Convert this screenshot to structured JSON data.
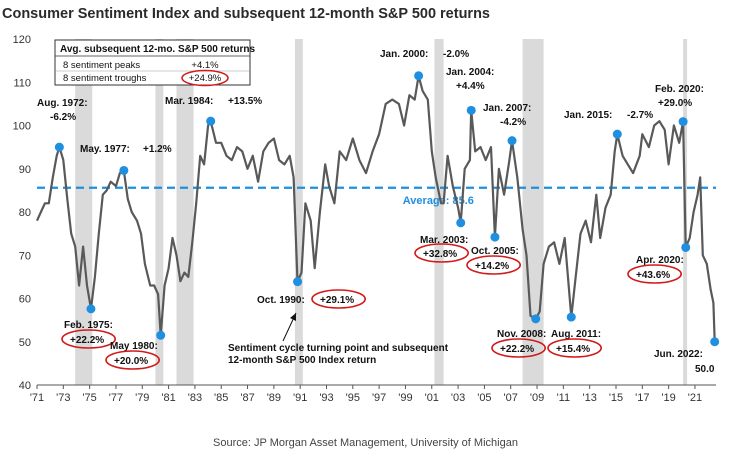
{
  "chart_data": {
    "type": "line",
    "title": "Consumer Sentiment Index and subsequent 12-month S&P 500 returns",
    "source": "Source: JP Morgan Asset Management, University of Michigan",
    "ylim": [
      40,
      120
    ],
    "yticks": [
      40,
      50,
      60,
      70,
      80,
      90,
      100,
      110,
      120
    ],
    "xlim": [
      1971,
      2022.6
    ],
    "xticks": [
      "'71",
      "'73",
      "'75",
      "'77",
      "'79",
      "'81",
      "'83",
      "'85",
      "'87",
      "'89",
      "'91",
      "'93",
      "'95",
      "'97",
      "'99",
      "'01",
      "'03",
      "'05",
      "'07",
      "'09",
      "'11",
      "'13",
      "'15",
      "'17",
      "'19",
      "'21"
    ],
    "average": {
      "label": "Average: 85.6",
      "value": 85.6
    },
    "recessions": [
      [
        1973.9,
        1975.2
      ],
      [
        1980.0,
        1980.6
      ],
      [
        1981.6,
        1982.9
      ],
      [
        1990.6,
        1991.2
      ],
      [
        2001.2,
        2001.9
      ],
      [
        2007.9,
        2009.5
      ],
      [
        2020.1,
        2020.4
      ]
    ],
    "series": [
      {
        "values": [
          [
            1971.0,
            78
          ],
          [
            1971.3,
            80
          ],
          [
            1971.6,
            82
          ],
          [
            1971.9,
            82
          ],
          [
            1972.2,
            88
          ],
          [
            1972.5,
            93
          ],
          [
            1972.7,
            95
          ],
          [
            1973.0,
            92
          ],
          [
            1973.3,
            83
          ],
          [
            1973.6,
            75
          ],
          [
            1973.9,
            72
          ],
          [
            1974.2,
            63
          ],
          [
            1974.5,
            72
          ],
          [
            1974.8,
            63
          ],
          [
            1975.1,
            57.6
          ],
          [
            1975.4,
            65
          ],
          [
            1975.7,
            75
          ],
          [
            1976.0,
            84
          ],
          [
            1976.3,
            85
          ],
          [
            1976.6,
            87
          ],
          [
            1977.0,
            86
          ],
          [
            1977.3,
            89
          ],
          [
            1977.6,
            89.6
          ],
          [
            1977.9,
            83
          ],
          [
            1978.2,
            80
          ],
          [
            1978.6,
            78
          ],
          [
            1978.9,
            75
          ],
          [
            1979.2,
            68
          ],
          [
            1979.6,
            63
          ],
          [
            1979.9,
            63
          ],
          [
            1980.2,
            61
          ],
          [
            1980.4,
            51.5
          ],
          [
            1980.7,
            63
          ],
          [
            1981.0,
            67
          ],
          [
            1981.3,
            74
          ],
          [
            1981.6,
            70
          ],
          [
            1981.9,
            64
          ],
          [
            1982.2,
            66
          ],
          [
            1982.5,
            65
          ],
          [
            1982.8,
            73
          ],
          [
            1983.1,
            82
          ],
          [
            1983.4,
            93
          ],
          [
            1983.7,
            91
          ],
          [
            1984.0,
            100
          ],
          [
            1984.2,
            101
          ],
          [
            1984.6,
            96
          ],
          [
            1985.0,
            96
          ],
          [
            1985.4,
            93
          ],
          [
            1985.8,
            92
          ],
          [
            1986.2,
            95
          ],
          [
            1986.6,
            94
          ],
          [
            1987.0,
            90
          ],
          [
            1987.4,
            93
          ],
          [
            1987.8,
            87
          ],
          [
            1988.2,
            94
          ],
          [
            1988.6,
            96
          ],
          [
            1989.0,
            97
          ],
          [
            1989.4,
            92
          ],
          [
            1989.8,
            91
          ],
          [
            1990.2,
            93
          ],
          [
            1990.5,
            88
          ],
          [
            1990.8,
            63.9
          ],
          [
            1991.1,
            66
          ],
          [
            1991.4,
            82
          ],
          [
            1991.8,
            78
          ],
          [
            1992.1,
            67
          ],
          [
            1992.5,
            80
          ],
          [
            1992.9,
            91
          ],
          [
            1993.2,
            86
          ],
          [
            1993.6,
            82
          ],
          [
            1994.0,
            94
          ],
          [
            1994.5,
            92
          ],
          [
            1995.0,
            97
          ],
          [
            1995.5,
            92
          ],
          [
            1996.0,
            89
          ],
          [
            1996.5,
            94
          ],
          [
            1997.0,
            98
          ],
          [
            1997.5,
            105
          ],
          [
            1998.0,
            106
          ],
          [
            1998.5,
            105
          ],
          [
            1998.9,
            100
          ],
          [
            1999.3,
            107
          ],
          [
            1999.7,
            106
          ],
          [
            2000.0,
            111.5
          ],
          [
            2000.3,
            108
          ],
          [
            2000.7,
            106
          ],
          [
            2001.0,
            94
          ],
          [
            2001.3,
            88
          ],
          [
            2001.7,
            82
          ],
          [
            2001.9,
            82
          ],
          [
            2002.2,
            93
          ],
          [
            2002.6,
            86
          ],
          [
            2003.0,
            81
          ],
          [
            2003.2,
            77.5
          ],
          [
            2003.5,
            90
          ],
          [
            2003.9,
            92
          ],
          [
            2004.0,
            103.5
          ],
          [
            2004.3,
            94
          ],
          [
            2004.7,
            95
          ],
          [
            2005.1,
            92
          ],
          [
            2005.5,
            95
          ],
          [
            2005.8,
            74.2
          ],
          [
            2006.1,
            90
          ],
          [
            2006.5,
            84
          ],
          [
            2006.9,
            92
          ],
          [
            2007.1,
            96.5
          ],
          [
            2007.5,
            88
          ],
          [
            2007.9,
            76
          ],
          [
            2008.2,
            70
          ],
          [
            2008.5,
            56
          ],
          [
            2008.9,
            55.3
          ],
          [
            2009.2,
            57
          ],
          [
            2009.5,
            68
          ],
          [
            2009.9,
            72
          ],
          [
            2010.3,
            73
          ],
          [
            2010.7,
            68
          ],
          [
            2011.1,
            74
          ],
          [
            2011.6,
            55.7
          ],
          [
            2011.9,
            64
          ],
          [
            2012.3,
            75
          ],
          [
            2012.7,
            78
          ],
          [
            2013.1,
            73
          ],
          [
            2013.5,
            84
          ],
          [
            2013.8,
            74
          ],
          [
            2014.2,
            81
          ],
          [
            2014.6,
            84
          ],
          [
            2014.9,
            94
          ],
          [
            2015.1,
            98
          ],
          [
            2015.5,
            93
          ],
          [
            2015.9,
            91
          ],
          [
            2016.3,
            89
          ],
          [
            2016.8,
            93
          ],
          [
            2017.0,
            98
          ],
          [
            2017.5,
            95
          ],
          [
            2017.9,
            100
          ],
          [
            2018.3,
            101
          ],
          [
            2018.7,
            99
          ],
          [
            2019.0,
            91
          ],
          [
            2019.4,
            100
          ],
          [
            2019.8,
            96
          ],
          [
            2020.1,
            100.9
          ],
          [
            2020.3,
            71.8
          ],
          [
            2020.6,
            74
          ],
          [
            2020.9,
            80
          ],
          [
            2021.2,
            84
          ],
          [
            2021.4,
            88
          ],
          [
            2021.6,
            70
          ],
          [
            2021.9,
            68
          ],
          [
            2022.2,
            62
          ],
          [
            2022.4,
            59
          ],
          [
            2022.5,
            50
          ]
        ]
      }
    ],
    "markers": [
      {
        "label": "Aug. 1972:",
        "sub": "-6.2%",
        "x": 1972.7,
        "y": 95
      },
      {
        "label": "Feb. 1975:",
        "sub": "+22.2%",
        "x": 1975.1,
        "y": 57.6
      },
      {
        "label": "May. 1977:",
        "sub": "+1.2%",
        "x": 1977.6,
        "y": 89.6
      },
      {
        "label": "May 1980:",
        "sub": "+20.0%",
        "x": 1980.4,
        "y": 51.5
      },
      {
        "label": "Mar. 1984:",
        "sub": "+13.5%",
        "x": 1984.2,
        "y": 101
      },
      {
        "label": "Oct. 1990:",
        "sub": "+29.1%",
        "x": 1990.8,
        "y": 63.9
      },
      {
        "label": "Jan. 2000:",
        "sub": "-2.0%",
        "x": 2000.0,
        "y": 111.5
      },
      {
        "label": "Mar. 2003:",
        "sub": "+32.8%",
        "x": 2003.2,
        "y": 77.5
      },
      {
        "label": "Jan. 2004:",
        "sub": "+4.4%",
        "x": 2004.0,
        "y": 103.5
      },
      {
        "label": "Oct. 2005:",
        "sub": "+14.2%",
        "x": 2005.8,
        "y": 74.2
      },
      {
        "label": "Jan. 2007:",
        "sub": "-4.2%",
        "x": 2007.1,
        "y": 96.5
      },
      {
        "label": "Nov. 2008:",
        "sub": "+22.2%",
        "x": 2008.9,
        "y": 55.3
      },
      {
        "label": "Aug. 2011:",
        "sub": "+15.4%",
        "x": 2011.6,
        "y": 55.7
      },
      {
        "label": "Jan. 2015:",
        "sub": "-2.7%",
        "x": 2015.1,
        "y": 98
      },
      {
        "label": "Feb. 2020:",
        "sub": "+29.0%",
        "x": 2020.1,
        "y": 100.9
      },
      {
        "label": "Apr. 2020:",
        "sub": "+43.6%",
        "x": 2020.3,
        "y": 71.8
      },
      {
        "label": "Jun. 2022:",
        "sub": "50.0",
        "x": 2022.5,
        "y": 50
      }
    ],
    "table": {
      "header": "Avg. subsequent 12-mo. S&P 500 returns",
      "rows": [
        {
          "label": "8 sentiment peaks",
          "value": "+4.1%"
        },
        {
          "label": "8 sentiment troughs",
          "value": "+24.9%"
        }
      ]
    },
    "annotation": "Sentiment cycle turning point and subsequent 12-month S&P 500 Index return",
    "colors": {
      "line": "#595959",
      "marker": "#1f8fe0",
      "average": "#1f8fe0",
      "recession": "#dadada",
      "circle": "#d11a1a"
    }
  }
}
